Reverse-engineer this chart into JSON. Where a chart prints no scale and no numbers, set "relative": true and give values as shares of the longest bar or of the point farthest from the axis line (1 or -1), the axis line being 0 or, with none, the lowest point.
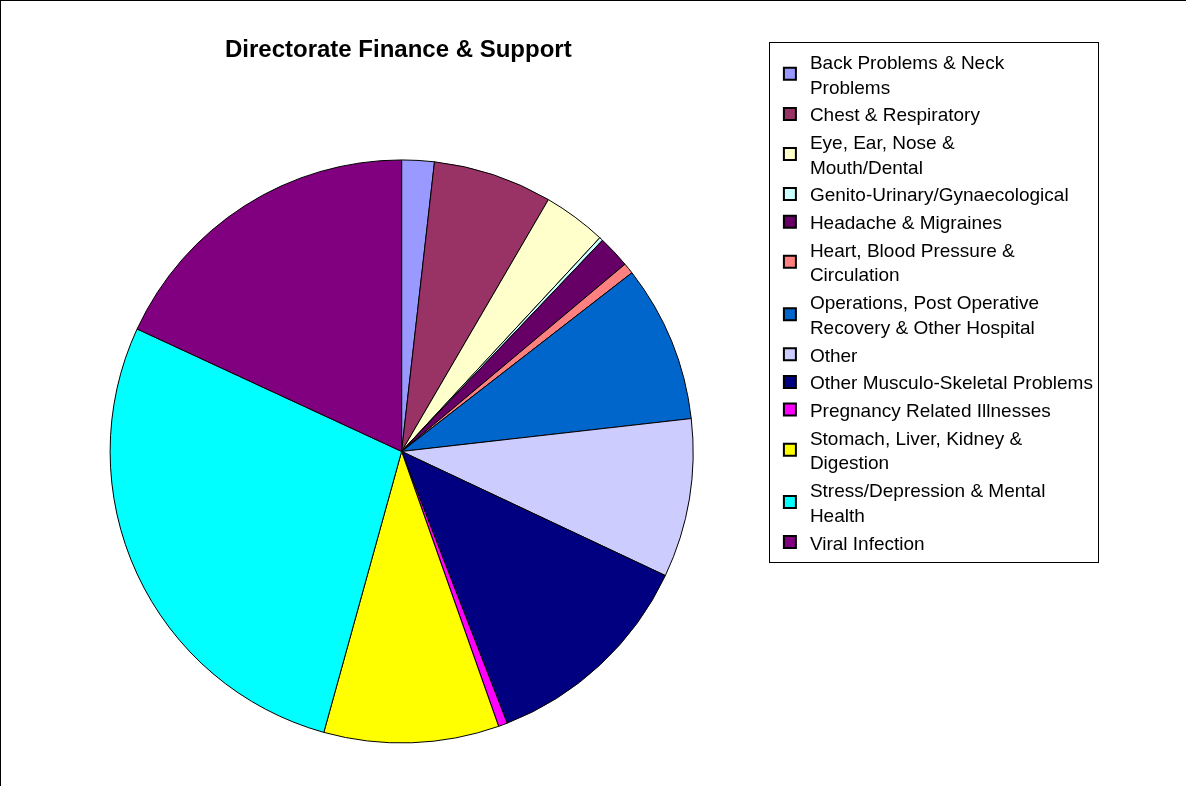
{
  "chart_data": {
    "type": "pie",
    "title": "Directorate Finance & Support",
    "categories": [
      "Back Problems & Neck Problems",
      "Chest & Respiratory",
      "Eye, Ear, Nose & Mouth/Dental",
      "Genito-Urinary/Gynaecological",
      "Headache & Migraines",
      "Heart, Blood Pressure & Circulation",
      "Operations, Post Operative Recovery & Other Hospital",
      "Other",
      "Other Musculo-Skeletal Problems",
      "Pregnancy Related Illnesses",
      "Stomach, Liver, Kidney & Digestion",
      "Stress/Depression & Mental Health",
      "Viral Infection"
    ],
    "values": [
      1.8,
      6.6,
      3.5,
      0.2,
      1.8,
      0.6,
      8.7,
      8.8,
      12.1,
      0.5,
      9.7,
      27.6,
      18.1
    ],
    "colors": [
      "#9999ff",
      "#993366",
      "#ffffcc",
      "#ccffff",
      "#660066",
      "#ff8080",
      "#0066cc",
      "#ccccff",
      "#000080",
      "#ff00ff",
      "#ffff00",
      "#00ffff",
      "#800080"
    ],
    "relative": true,
    "legend": "right"
  }
}
